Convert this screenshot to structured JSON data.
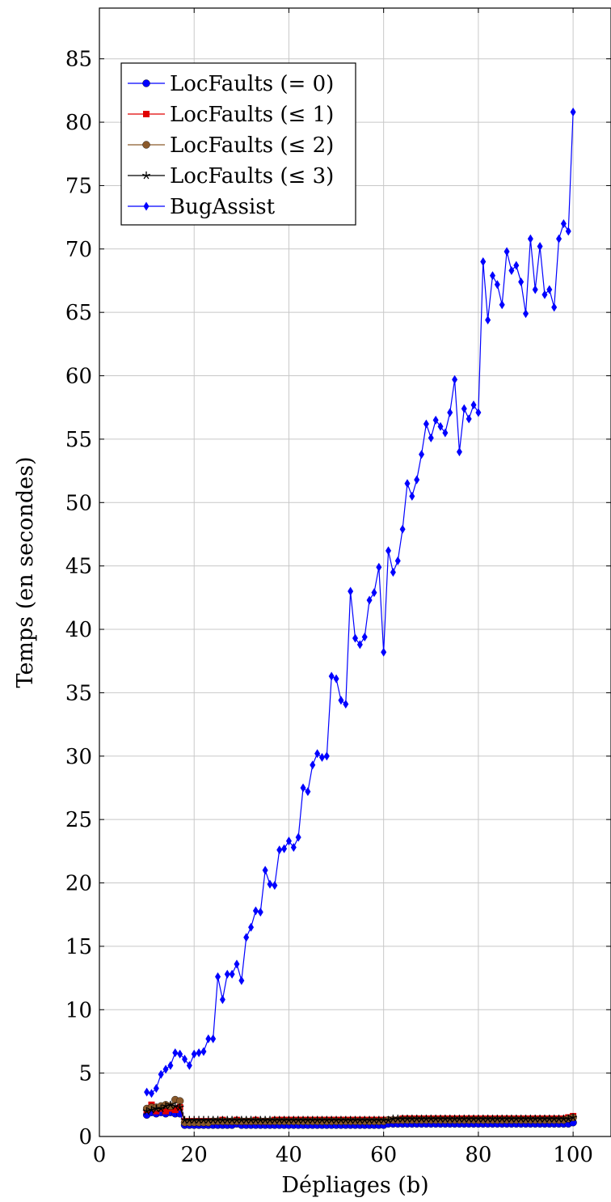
{
  "chart_data": {
    "type": "line",
    "xlabel": "Dépliages (b)",
    "ylabel": "Temps (en secondes)",
    "xlim": [
      0,
      108
    ],
    "ylim": [
      0,
      89
    ],
    "xticks": [
      0,
      20,
      40,
      60,
      80,
      100
    ],
    "yticks": [
      0,
      5,
      10,
      15,
      20,
      25,
      30,
      35,
      40,
      45,
      50,
      55,
      60,
      65,
      70,
      75,
      80,
      85
    ],
    "grid": true,
    "legend_position": "top-left",
    "x": [
      10,
      11,
      12,
      13,
      14,
      15,
      16,
      17,
      18,
      19,
      20,
      21,
      22,
      23,
      24,
      25,
      26,
      27,
      28,
      29,
      30,
      31,
      32,
      33,
      34,
      35,
      36,
      37,
      38,
      39,
      40,
      41,
      42,
      43,
      44,
      45,
      46,
      47,
      48,
      49,
      50,
      51,
      52,
      53,
      54,
      55,
      56,
      57,
      58,
      59,
      60,
      61,
      62,
      63,
      64,
      65,
      66,
      67,
      68,
      69,
      70,
      71,
      72,
      73,
      74,
      75,
      76,
      77,
      78,
      79,
      80,
      81,
      82,
      83,
      84,
      85,
      86,
      87,
      88,
      89,
      90,
      91,
      92,
      93,
      94,
      95,
      96,
      97,
      98,
      99,
      100
    ],
    "series": [
      {
        "name": "LocFaults (= 0)",
        "color": "#0000ff",
        "marker": "circle",
        "values": [
          1.7,
          1.9,
          1.8,
          1.9,
          1.8,
          1.9,
          1.8,
          1.8,
          0.9,
          0.9,
          0.9,
          0.9,
          0.9,
          0.9,
          0.9,
          0.9,
          0.9,
          0.9,
          0.9,
          1.0,
          0.9,
          0.9,
          0.9,
          0.9,
          0.9,
          0.9,
          0.9,
          0.9,
          0.9,
          0.9,
          0.9,
          0.9,
          0.9,
          0.9,
          0.9,
          0.9,
          0.9,
          0.9,
          0.9,
          0.9,
          0.9,
          0.9,
          0.9,
          0.9,
          0.9,
          0.9,
          0.9,
          0.9,
          0.9,
          0.9,
          0.9,
          1.0,
          1.0,
          1.0,
          1.0,
          1.0,
          1.0,
          1.0,
          1.0,
          1.0,
          1.0,
          1.0,
          1.0,
          1.0,
          1.0,
          1.0,
          1.0,
          1.0,
          1.0,
          1.0,
          1.0,
          1.0,
          1.0,
          1.0,
          1.0,
          1.0,
          1.0,
          1.0,
          1.0,
          1.0,
          1.0,
          1.0,
          1.0,
          1.0,
          1.0,
          1.0,
          1.0,
          1.0,
          1.0,
          1.0,
          1.1
        ]
      },
      {
        "name": "LocFaults (≤ 1)",
        "color": "#e00000",
        "marker": "square",
        "values": [
          2.1,
          2.5,
          2.0,
          2.2,
          2.0,
          2.2,
          2.1,
          2.3,
          1.2,
          1.2,
          1.2,
          1.2,
          1.2,
          1.2,
          1.2,
          1.2,
          1.3,
          1.2,
          1.2,
          1.3,
          1.2,
          1.2,
          1.2,
          1.3,
          1.2,
          1.2,
          1.2,
          1.3,
          1.3,
          1.3,
          1.3,
          1.3,
          1.3,
          1.3,
          1.3,
          1.3,
          1.3,
          1.3,
          1.3,
          1.3,
          1.3,
          1.3,
          1.3,
          1.3,
          1.3,
          1.3,
          1.3,
          1.3,
          1.3,
          1.3,
          1.3,
          1.3,
          1.3,
          1.3,
          1.4,
          1.4,
          1.4,
          1.4,
          1.4,
          1.4,
          1.4,
          1.4,
          1.4,
          1.4,
          1.4,
          1.4,
          1.4,
          1.4,
          1.4,
          1.4,
          1.4,
          1.4,
          1.4,
          1.4,
          1.4,
          1.4,
          1.4,
          1.4,
          1.4,
          1.4,
          1.4,
          1.4,
          1.4,
          1.4,
          1.4,
          1.4,
          1.4,
          1.4,
          1.4,
          1.5,
          1.6
        ]
      },
      {
        "name": "LocFaults (≤ 2)",
        "color": "#8b5a2b",
        "marker": "circle",
        "values": [
          2.2,
          2.3,
          2.3,
          2.4,
          2.5,
          2.4,
          2.9,
          2.8,
          1.1,
          1.1,
          1.1,
          1.1,
          1.1,
          1.1,
          1.2,
          1.2,
          1.2,
          1.2,
          1.2,
          1.2,
          1.2,
          1.2,
          1.2,
          1.2,
          1.2,
          1.2,
          1.2,
          1.2,
          1.2,
          1.2,
          1.2,
          1.2,
          1.2,
          1.2,
          1.2,
          1.2,
          1.2,
          1.2,
          1.2,
          1.2,
          1.2,
          1.2,
          1.2,
          1.2,
          1.2,
          1.2,
          1.2,
          1.2,
          1.2,
          1.2,
          1.2,
          1.3,
          1.3,
          1.3,
          1.3,
          1.3,
          1.3,
          1.3,
          1.3,
          1.3,
          1.3,
          1.3,
          1.3,
          1.3,
          1.3,
          1.3,
          1.3,
          1.3,
          1.3,
          1.3,
          1.3,
          1.3,
          1.3,
          1.3,
          1.3,
          1.3,
          1.3,
          1.3,
          1.3,
          1.3,
          1.3,
          1.3,
          1.3,
          1.3,
          1.3,
          1.3,
          1.3,
          1.3,
          1.3,
          1.4,
          1.5
        ]
      },
      {
        "name": "LocFaults (≤ 3)",
        "color": "#000000",
        "marker": "star",
        "values": [
          2.0,
          2.1,
          2.2,
          2.2,
          2.4,
          2.5,
          2.4,
          2.3,
          1.3,
          1.3,
          1.3,
          1.3,
          1.3,
          1.3,
          1.3,
          1.3,
          1.3,
          1.3,
          1.3,
          1.3,
          1.3,
          1.3,
          1.3,
          1.3,
          1.3,
          1.3,
          1.3,
          1.3,
          1.3,
          1.3,
          1.3,
          1.3,
          1.3,
          1.3,
          1.3,
          1.3,
          1.3,
          1.3,
          1.3,
          1.3,
          1.3,
          1.3,
          1.3,
          1.3,
          1.3,
          1.3,
          1.3,
          1.3,
          1.3,
          1.3,
          1.3,
          1.3,
          1.4,
          1.4,
          1.4,
          1.4,
          1.4,
          1.4,
          1.4,
          1.4,
          1.4,
          1.4,
          1.4,
          1.4,
          1.4,
          1.4,
          1.4,
          1.4,
          1.4,
          1.4,
          1.4,
          1.4,
          1.4,
          1.4,
          1.4,
          1.4,
          1.4,
          1.4,
          1.4,
          1.4,
          1.4,
          1.4,
          1.4,
          1.4,
          1.4,
          1.4,
          1.4,
          1.4,
          1.4,
          1.4,
          1.5
        ]
      },
      {
        "name": "BugAssist",
        "color": "#0000ff",
        "marker": "diamond",
        "values": [
          3.5,
          3.4,
          3.8,
          4.9,
          5.3,
          5.6,
          6.6,
          6.5,
          6.1,
          5.6,
          6.5,
          6.6,
          6.7,
          7.7,
          7.7,
          12.6,
          10.8,
          12.8,
          12.8,
          13.6,
          12.3,
          15.7,
          16.5,
          17.8,
          17.7,
          21.0,
          19.9,
          19.8,
          22.6,
          22.7,
          23.3,
          22.8,
          23.6,
          27.5,
          27.2,
          29.3,
          30.2,
          29.9,
          30.0,
          36.3,
          36.1,
          34.4,
          34.1,
          43.0,
          39.3,
          38.8,
          39.4,
          42.3,
          42.9,
          44.9,
          38.2,
          46.2,
          44.5,
          45.4,
          47.9,
          51.5,
          50.5,
          51.8,
          53.8,
          56.2,
          55.1,
          56.5,
          56.0,
          55.5,
          57.1,
          59.7,
          54.0,
          57.4,
          56.6,
          57.7,
          57.1,
          69.0,
          64.4,
          67.9,
          67.2,
          65.6,
          69.8,
          68.3,
          68.7,
          67.4,
          64.9,
          70.8,
          66.8,
          70.2,
          66.4,
          66.8,
          65.4,
          70.8,
          72.0,
          71.4,
          80.8
        ]
      }
    ]
  }
}
